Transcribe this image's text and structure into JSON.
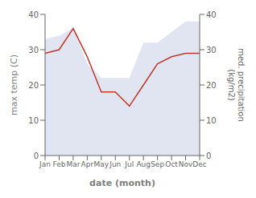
{
  "chart_data": {
    "type": "line",
    "categories": [
      "Jan",
      "Feb",
      "Mar",
      "Apr",
      "May",
      "Jun",
      "Jul",
      "Aug",
      "Sep",
      "Oct",
      "Nov",
      "Dec"
    ],
    "series": [
      {
        "type": "area",
        "axis": "y2",
        "color": "#c8d0e8",
        "values": [
          33,
          34,
          36,
          26,
          22,
          22,
          22,
          32,
          32,
          35,
          38,
          38
        ]
      },
      {
        "type": "line",
        "color": "#c0392b",
        "values": [
          29,
          30,
          36,
          28,
          18,
          18,
          14,
          20,
          26,
          28,
          29,
          29
        ]
      }
    ],
    "xlabel": "date (month)",
    "ylabel": "max temp (C)",
    "y2label": "med. precipitation\n(kg/m2)",
    "ylim": [
      0,
      40
    ],
    "yticks": [
      0,
      10,
      20,
      30,
      40
    ],
    "y2lim": [
      0,
      40
    ],
    "y2ticks": [
      0,
      10,
      20,
      30,
      40
    ],
    "grid": false
  }
}
